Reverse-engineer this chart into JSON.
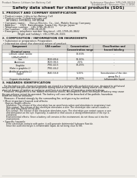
{
  "bg_color": "#f0ede8",
  "text_color": "#1a1a1a",
  "header_left": "Product Name: Lithium Ion Battery Cell",
  "header_right": "Substance Number: SPS-049-00010\nEstablished / Revision: Dec.1.2016",
  "title": "Safety data sheet for chemical products (SDS)",
  "s1_title": "1. PRODUCT AND COMPANY IDENTIFICATION",
  "s1_lines": [
    " • Product name: Lithium Ion Battery Cell",
    " • Product code: Cylindrical-type cell",
    "     IHF1865U, IHF1865U, IHF1865A",
    " • Company name:      Denyo Electric, Co., Ltd., Mobile Energy Company",
    " • Address:      2021  Kannonsawa, Suwa-City, Hyogo, Japan",
    " • Telephone number:   +81-1785-26-4111",
    " • Fax number:   +81-1785-26-4120",
    " • Emergency telephone number (daytime): +81-1785-26-3842",
    "                    (Night and holiday): +81-1785-26-3101"
  ],
  "s2_title": "2. COMPOSITION / INFORMATION ON INGREDIENTS",
  "s2_sub1": " • Substance or preparation: Preparation",
  "s2_sub2": " • Information about the chemical nature of product:",
  "tbl_headers": [
    "Chemical name",
    "CAS number",
    "Concentration /\nConcentration range",
    "Classification and\nhazard labeling"
  ],
  "tbl_col_label": "Component",
  "tbl_rows": [
    [
      "Lithium cobalt lamite\n(LiMn(Co/Ni)O₂)",
      "-",
      "30-60%",
      "-"
    ],
    [
      "Iron",
      "7439-89-6",
      "10-30%",
      "-"
    ],
    [
      "Aluminum",
      "7429-90-5",
      "2-5%",
      "-"
    ],
    [
      "Graphite\n(flake n graphite-L)\n(Artificial graphite-L)",
      "7782-42-5\n7782-44-2",
      "10-25%",
      "-"
    ],
    [
      "Copper",
      "7440-50-8",
      "5-15%",
      "Sensitization of the skin\ngroup No.2"
    ],
    [
      "Organic electrolyte",
      "-",
      "10-20%",
      "Inflammable liquid"
    ]
  ],
  "s3_title": "3. HAZARDS IDENTIFICATION",
  "s3_para": "   For the battery cell, chemical materials are stored in a hermetically-sealed metal case, designed to withstand\ntemperature and pressure-decomposition during normal use. As a result, during normal use, there is no\nphysical danger of ignition or explosion and there is no danger of hazardous material leakage.\n   However, if exposed to a fire, added mechanical shocks, decomposed, when electrolyte of battery may cause\nthe gas release cannot be operated. The battery cell case will be breached of fire-pothole, hazardous\nmaterials may be released.\n   Moreover, if heated strongly by the surrounding fire, acid gas may be emitted.",
  "s3_b1": " • Most important hazard and effects:",
  "s3_human": "    Human health effects:",
  "s3_inhal": "      Inhalation: The release of the electrolyte has an anesthesia action and stimulates in respiratory tract.",
  "s3_skin1": "      Skin contact: The release of the electrolyte stimulates a skin. The electrolyte skin contact causes a",
  "s3_skin2": "      sore and stimulation on the skin.",
  "s3_eye1": "      Eye contact: The release of the electrolyte stimulates eyes. The electrolyte eye contact causes a sore",
  "s3_eye2": "      and stimulation on the eye. Especially, a substance that causes a strong inflammation of the eye is",
  "s3_eye3": "      contained.",
  "s3_env1": "      Environmental effects: Since a battery cell remains in the environment, do not throw out it into the",
  "s3_env2": "      environment.",
  "s3_b2": " • Specific hazards:",
  "s3_spec1": "      If the electrolyte contacts with water, it will generate detrimental hydrogen fluoride.",
  "s3_spec2": "      Since the used electrolyte is inflammable liquid, do not bring close to fire."
}
